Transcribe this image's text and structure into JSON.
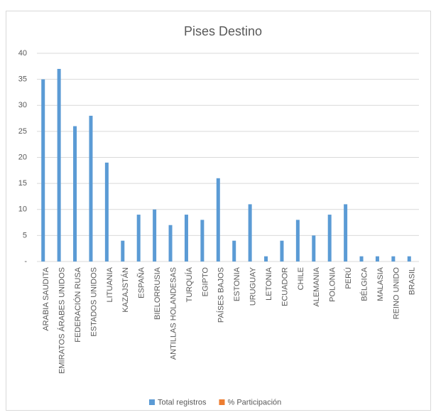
{
  "chart_data": {
    "type": "bar",
    "title": "Pises Destino",
    "categories": [
      "ARABIA SAUDITA",
      "EMIRATOS ÁRABES UNIDOS",
      "FEDERACIÓN RUSA",
      "ESTADOS UNIDOS",
      "LITUANIA",
      "KAZAJSTÁN",
      "ESPAÑA",
      "BIELORRUSIA",
      "ANTILLAS HOLANDESAS",
      "TURQUÍA",
      "EGIPTO",
      "PAÍSES BAJOS",
      "ESTONIA",
      "URUGUAY",
      "LETONIA",
      "ECUADOR",
      "CHILE",
      "ALEMANIA",
      "POLONIA",
      "PERÚ",
      "BÉLGICA",
      "MALASIA",
      "REINO UNIDO",
      "BRASIL"
    ],
    "series": [
      {
        "name": "Total registros",
        "color": "#5b9bd5",
        "values": [
          35,
          37,
          26,
          28,
          19,
          4,
          9,
          10,
          7,
          9,
          8,
          16,
          4,
          11,
          1,
          4,
          8,
          5,
          9,
          11,
          1,
          1,
          1,
          1
        ]
      },
      {
        "name": "% Participación",
        "color": "#ed7d31",
        "values": [
          0,
          0,
          0,
          0,
          0,
          0,
          0,
          0,
          0,
          0,
          0,
          0,
          0,
          0,
          0,
          0,
          0,
          0,
          0,
          0,
          0,
          0,
          0,
          0
        ]
      }
    ],
    "ylim": [
      0,
      40
    ],
    "yticks": [
      {
        "value": 0,
        "label": "-"
      },
      5,
      10,
      15,
      20,
      25,
      30,
      35,
      40
    ],
    "grid": true
  }
}
